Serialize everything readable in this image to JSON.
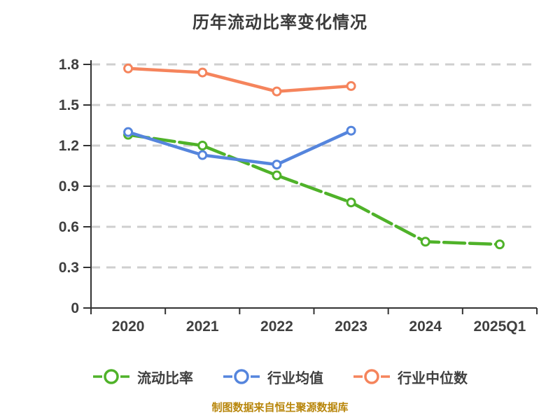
{
  "title": "历年流动比率变化情况",
  "footer_note": "制图数据来自恒生聚源数据库",
  "colors": {
    "background": "#ffffff",
    "title_text": "#3b3b3b",
    "axis_line": "#333333",
    "axis_text": "#3f3f3f",
    "gridline": "#cfcfcf",
    "legend_text": "#3f3f3f",
    "footer_text": "#b8860b",
    "marker_fill": "#ffffff"
  },
  "chart_data": {
    "type": "line",
    "title": "历年流动比率变化情况",
    "categories": [
      "2020",
      "2021",
      "2022",
      "2023",
      "2024",
      "2025Q1"
    ],
    "series": [
      {
        "id": "current-ratio",
        "name": "流动比率",
        "color": "#4fb229",
        "line_style": "long-dash",
        "values": [
          1.28,
          1.2,
          0.98,
          0.78,
          0.49,
          0.47
        ]
      },
      {
        "id": "industry-average",
        "name": "行业均值",
        "color": "#5585dd",
        "line_style": "solid",
        "values": [
          1.3,
          1.13,
          1.06,
          1.31,
          null,
          null
        ]
      },
      {
        "id": "industry-median",
        "name": "行业中位数",
        "color": "#f5845c",
        "line_style": "solid",
        "values": [
          1.77,
          1.74,
          1.6,
          1.64,
          null,
          null
        ]
      }
    ],
    "xlabel": "",
    "ylabel": "",
    "ylim": [
      0,
      1.8
    ],
    "yticks": [
      0,
      0.3,
      0.6,
      0.9,
      1.2,
      1.5,
      1.8
    ],
    "grid": "horizontal-dashed",
    "legend_position": "bottom",
    "marker": "open-circle"
  }
}
